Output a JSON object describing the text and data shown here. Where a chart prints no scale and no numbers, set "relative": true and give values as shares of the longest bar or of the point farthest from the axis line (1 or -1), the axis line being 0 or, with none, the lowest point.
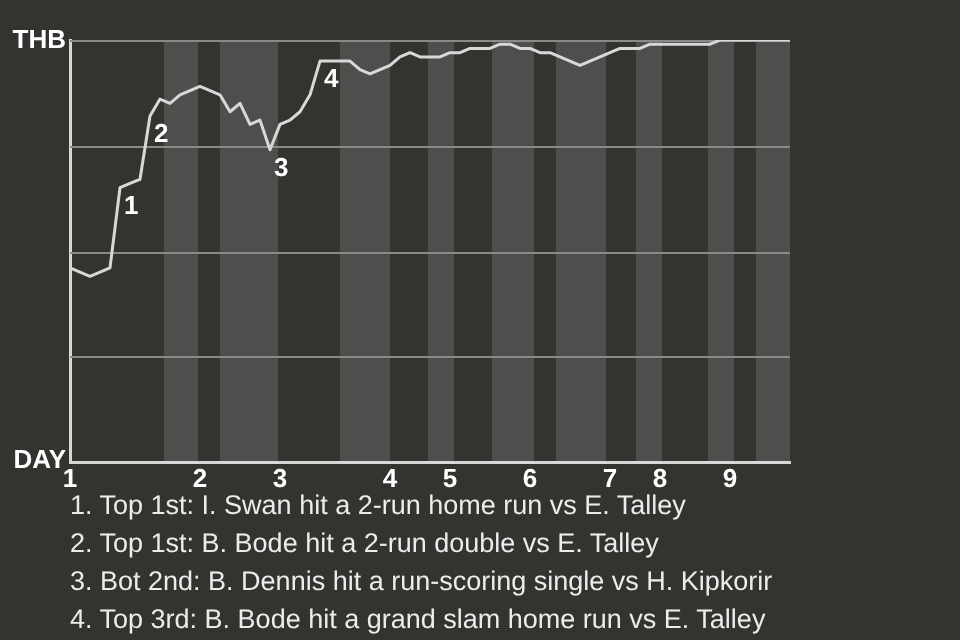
{
  "chart_data": {
    "type": "line",
    "relative": true,
    "categories": [
      "1",
      null,
      null,
      null,
      null,
      null,
      null,
      null,
      null,
      null,
      null,
      null,
      null,
      "2",
      null,
      null,
      null,
      null,
      null,
      null,
      null,
      "3",
      null,
      null,
      null,
      null,
      null,
      null,
      null,
      null,
      null,
      null,
      "4",
      null,
      null,
      null,
      null,
      null,
      "5",
      null,
      null,
      null,
      null,
      null,
      null,
      null,
      "6",
      null,
      null,
      null,
      null,
      null,
      null,
      null,
      "7",
      null,
      null,
      null,
      null,
      "8",
      null,
      null,
      null,
      null,
      null,
      null,
      "9",
      null,
      null,
      null,
      null,
      null,
      null
    ],
    "series": [
      {
        "color": "#d8d8d8",
        "values": [
          0.46,
          0.45,
          0.44,
          0.45,
          0.46,
          0.65,
          0.66,
          0.67,
          0.82,
          0.86,
          0.85,
          0.87,
          0.88,
          0.89,
          0.88,
          0.87,
          0.83,
          0.85,
          0.8,
          0.81,
          0.74,
          0.8,
          0.81,
          0.83,
          0.87,
          0.95,
          0.95,
          0.95,
          0.95,
          0.93,
          0.92,
          0.93,
          0.94,
          0.96,
          0.97,
          0.96,
          0.96,
          0.96,
          0.97,
          0.97,
          0.98,
          0.98,
          0.98,
          0.99,
          0.99,
          0.98,
          0.98,
          0.97,
          0.97,
          0.96,
          0.95,
          0.94,
          0.95,
          0.96,
          0.97,
          0.98,
          0.98,
          0.98,
          0.99,
          0.99,
          0.99,
          0.99,
          0.99,
          0.99,
          0.99,
          1.0,
          1.0,
          1.0,
          1.0,
          1.0,
          1.0,
          1.0,
          1.0
        ]
      }
    ],
    "grid": "y",
    "legend": false,
    "marker": "none",
    "line_style": "solid",
    "annotations": [
      "THB",
      "DAY",
      {
        "text": "1",
        "y": 0.65
      },
      {
        "text": "2",
        "y": 0.82
      },
      {
        "text": "3",
        "y": 0.74
      },
      {
        "text": "4",
        "y": 0.95
      },
      "1. Top 1st: I. Swan hit a 2-run home run vs E. Talley",
      "2. Top 1st: B. Bode hit a 2-run double vs E. Talley",
      "3. Bot 2nd: B. Dennis hit a run-scoring single vs H. Kipkorir",
      "4. Top 3rd: B. Bode hit a grand slam home run vs E. Talley"
    ]
  }
}
